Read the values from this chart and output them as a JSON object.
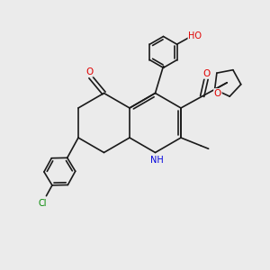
{
  "background_color": "#ebebeb",
  "bond_color": "#1a1a1a",
  "atom_colors": {
    "O": "#e00000",
    "N": "#0000dd",
    "Cl": "#008800",
    "C": "#1a1a1a"
  },
  "font_size": 7.0,
  "bond_width": 1.2
}
